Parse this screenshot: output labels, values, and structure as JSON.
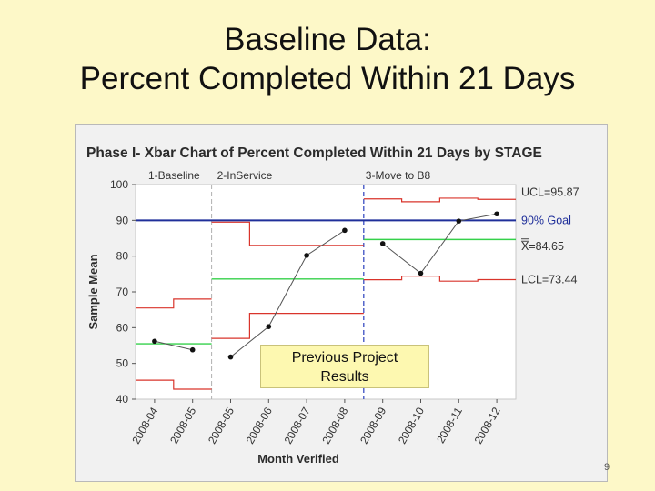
{
  "slide": {
    "title_line1": "Baseline Data:",
    "title_line2": "Percent Completed Within 21 Days",
    "callout_text": "Previous Project\nResults",
    "page_number": "9"
  },
  "chart_data": {
    "type": "line",
    "title": "Phase I- Xbar Chart of Percent Completed Within 21 Days by STAGE",
    "xlabel": "Month Verified",
    "ylabel": "Sample Mean",
    "ylim": [
      40,
      100
    ],
    "yticks": [
      40,
      50,
      60,
      70,
      80,
      90,
      100
    ],
    "categories": [
      "2008-04",
      "2008-05",
      "2008-05",
      "2008-06",
      "2008-07",
      "2008-08",
      "2008-09",
      "2008-10",
      "2008-11",
      "2008-12"
    ],
    "stages": [
      {
        "label": "1-Baseline",
        "start": 0,
        "end": 1
      },
      {
        "label": "2-InService",
        "start": 2,
        "end": 5
      },
      {
        "label": "3-Move to B8",
        "start": 6,
        "end": 9
      }
    ],
    "series": [
      {
        "values": [
          56.2,
          53.8,
          51.8,
          60.3,
          80.2,
          87.2,
          83.5,
          75.2,
          89.8,
          91.8
        ]
      }
    ],
    "center_lines": [
      {
        "stage": 0,
        "value": 55.5
      },
      {
        "stage": 1,
        "value": 73.6
      },
      {
        "stage": 2,
        "value": 84.65
      }
    ],
    "ucl_steps": [
      65.5,
      68.0,
      57.0,
      64.0,
      64.0,
      64.0,
      96.0,
      95.2,
      96.2,
      95.87
    ],
    "lcl_steps": [
      45.3,
      42.8,
      57.0,
      64.0,
      64.0,
      64.0,
      73.4,
      74.4,
      73.0,
      73.44
    ],
    "ucl_stage2_upper": [
      89.5,
      83.0,
      83.0,
      83.0
    ],
    "ucl_stage2_lower": [
      57.0,
      64.0,
      64.0,
      64.0
    ],
    "goal": 90,
    "right_labels": {
      "ucl": "UCL=95.87",
      "goal": "90% Goal",
      "xbar": "X=84.65",
      "lcl": "LCL=73.44"
    },
    "colors": {
      "limits": "#d9342b",
      "center": "#35d14a",
      "goal": "#1f2f9a",
      "stage_divider": "#3b4fc2",
      "data": "#555555"
    }
  }
}
